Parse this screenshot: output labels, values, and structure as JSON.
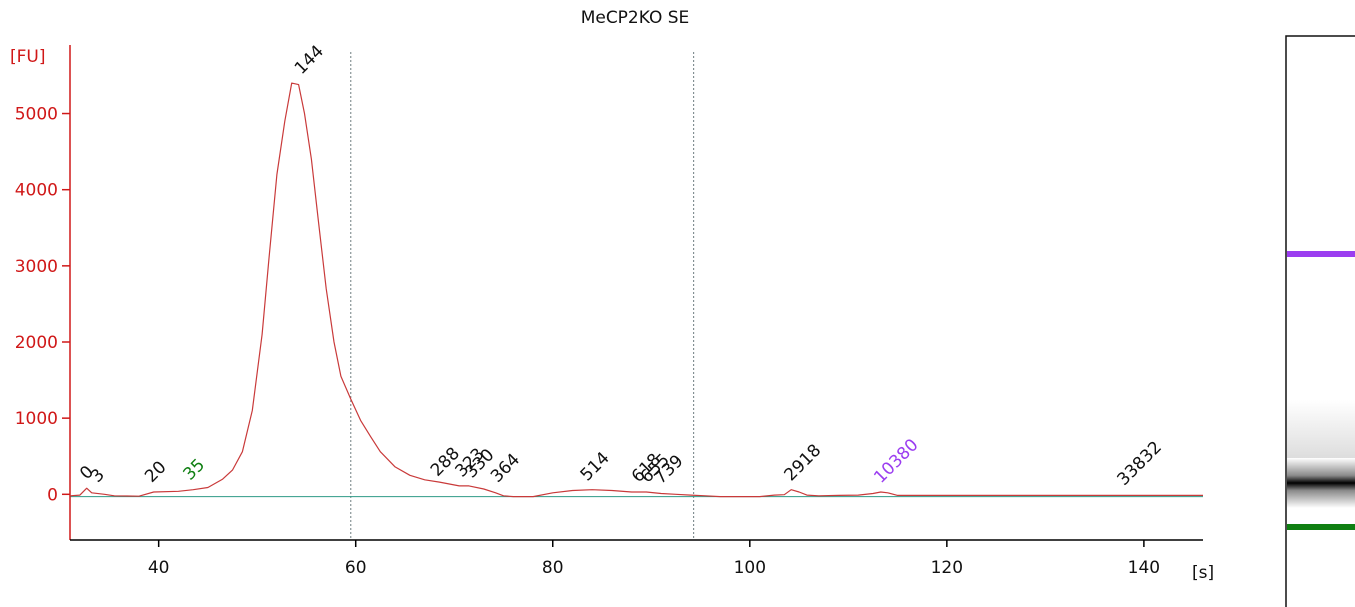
{
  "colors": {
    "trace": "#c93a3a",
    "baseline": "#2e9a86",
    "y_axis": "#d01818",
    "x_axis": "#000000",
    "marker_upper": "#9b3df0",
    "marker_lower": "#0f7f12",
    "label_default": "#111111"
  },
  "chart_data": {
    "type": "line",
    "title": "MeCP2KO SE",
    "ylabel": "[FU]",
    "xlabel": "[s]",
    "xlim": [
      31,
      146
    ],
    "ylim": [
      -600,
      5900
    ],
    "x_ticks": [
      "40",
      "60",
      "80",
      "100",
      "120",
      "140"
    ],
    "y_ticks": [
      "0",
      "1000",
      "2000",
      "3000",
      "4000",
      "5000"
    ],
    "region_markers_x": [
      59.5,
      94.3
    ],
    "grid": false,
    "series": [
      {
        "x": [
          31,
          32,
          32.7,
          33.2,
          34.5,
          35.5,
          38,
          39.5,
          42,
          43.5,
          45,
          46.5,
          47.5,
          48.5,
          49.5,
          50.5,
          51.2,
          52,
          52.8,
          53.5,
          54.2,
          54.8,
          55.5,
          56.2,
          57,
          57.8,
          58.5,
          59.5,
          60.5,
          61.5,
          62.5,
          64,
          65.5,
          67,
          68.5,
          70.5,
          71.5,
          73,
          74.2,
          75,
          76,
          78,
          80,
          82,
          84,
          86,
          88,
          89.5,
          91,
          92.5,
          94,
          95.5,
          97,
          99,
          101,
          102.5,
          103.5,
          104.2,
          105,
          105.8,
          107,
          109,
          111,
          112.5,
          113.3,
          114,
          115,
          118,
          125,
          135,
          146
        ],
        "y": [
          -20,
          -10,
          80,
          20,
          0,
          -20,
          -25,
          30,
          40,
          60,
          90,
          200,
          320,
          560,
          1100,
          2100,
          3100,
          4200,
          4900,
          5400,
          5380,
          5000,
          4400,
          3600,
          2700,
          2000,
          1550,
          1250,
          970,
          760,
          560,
          360,
          250,
          190,
          160,
          110,
          110,
          70,
          20,
          -20,
          -30,
          -30,
          20,
          50,
          60,
          50,
          30,
          30,
          10,
          0,
          -10,
          -20,
          -30,
          -30,
          -30,
          -10,
          -5,
          60,
          30,
          -10,
          -20,
          -15,
          -10,
          10,
          30,
          20,
          -15,
          -15,
          -15,
          -15,
          -15
        ]
      }
    ],
    "peaks": [
      {
        "label": "0",
        "x": 32.7,
        "y": 80,
        "color": "#111111"
      },
      {
        "label": "3",
        "x": 33.8,
        "y": 40,
        "color": "#111111"
      },
      {
        "label": "20",
        "x": 39.3,
        "y": 40,
        "color": "#111111"
      },
      {
        "label": "35",
        "x": 43.2,
        "y": 70,
        "color": "#0f7f12"
      },
      {
        "label": "144",
        "x": 54.5,
        "y": 5400,
        "color": "#111111"
      },
      {
        "label": "288",
        "x": 68.3,
        "y": 120,
        "color": "#111111"
      },
      {
        "label": "323",
        "x": 70.8,
        "y": 110,
        "color": "#111111"
      },
      {
        "label": "330",
        "x": 71.8,
        "y": 100,
        "color": "#111111"
      },
      {
        "label": "364",
        "x": 74.4,
        "y": 40,
        "color": "#111111"
      },
      {
        "label": "514",
        "x": 83.5,
        "y": 60,
        "color": "#111111"
      },
      {
        "label": "618",
        "x": 88.7,
        "y": 40,
        "color": "#111111"
      },
      {
        "label": "655",
        "x": 89.6,
        "y": 35,
        "color": "#111111"
      },
      {
        "label": "739",
        "x": 91.0,
        "y": 20,
        "color": "#111111"
      },
      {
        "label": "2918",
        "x": 104.2,
        "y": 60,
        "color": "#111111"
      },
      {
        "label": "10380",
        "x": 113.3,
        "y": 30,
        "color": "#9b3df0"
      },
      {
        "label": "33832",
        "x": 138.0,
        "y": 0,
        "color": "#111111"
      }
    ]
  }
}
